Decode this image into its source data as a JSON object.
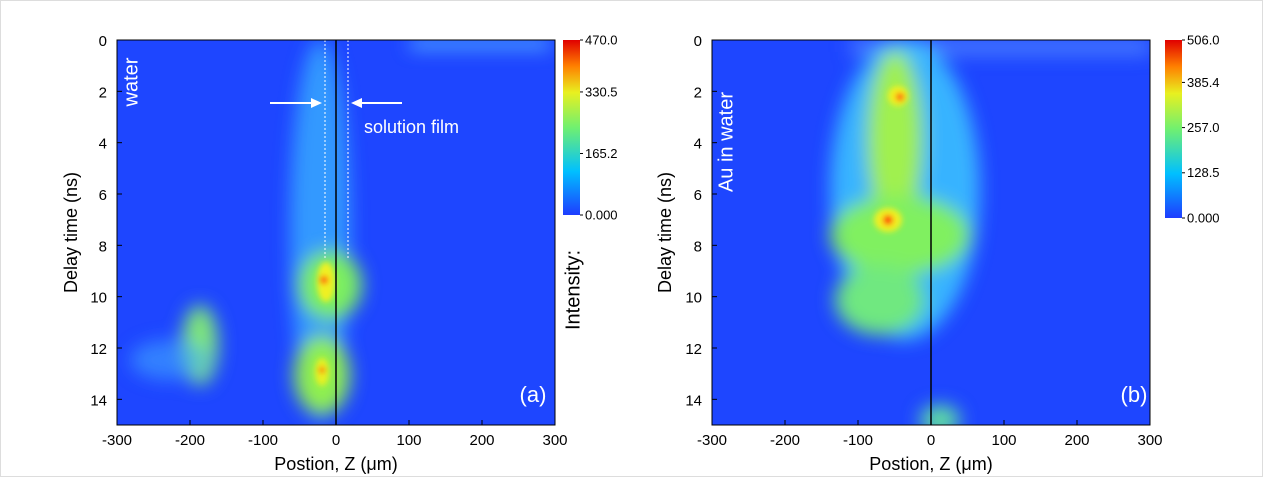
{
  "chart_data": [
    {
      "type": "heatmap",
      "xlabel": "Postion, Z (μm)",
      "ylabel": "Delay time (ns)",
      "xlim": [
        -300,
        300
      ],
      "xticks": [
        -300,
        -200,
        -100,
        0,
        100,
        200,
        300
      ],
      "ylim": [
        0,
        15
      ],
      "y_inverted": true,
      "yticks": [
        0,
        2,
        4,
        6,
        8,
        10,
        12,
        14
      ],
      "colorbar_label": "Intensity:",
      "colorbar_lim": [
        0,
        470
      ],
      "colorbar_ticks": [
        {
          "value": 470,
          "label": "470.0"
        },
        {
          "value": 330.5,
          "label": "330.5"
        },
        {
          "value": 165.2,
          "label": "165.2"
        },
        {
          "value": 0,
          "label": "0.000"
        }
      ],
      "colormap": "jet",
      "annotations": [
        "water",
        "solution film",
        "(a)"
      ]
    },
    {
      "type": "heatmap",
      "xlabel": "Postion, Z (μm)",
      "ylabel": "Delay time (ns)",
      "xlim": [
        -300,
        300
      ],
      "xticks": [
        -300,
        -200,
        -100,
        0,
        100,
        200,
        300
      ],
      "ylim": [
        0,
        15
      ],
      "y_inverted": true,
      "yticks": [
        0,
        2,
        4,
        6,
        8,
        10,
        12,
        14
      ],
      "colorbar_lim": [
        0,
        506
      ],
      "colorbar_ticks": [
        {
          "value": 506,
          "label": "506.0"
        },
        {
          "value": 385.4,
          "label": "385.4"
        },
        {
          "value": 257,
          "label": "257.0"
        },
        {
          "value": 128.5,
          "label": "128.5"
        },
        {
          "value": 0,
          "label": "0.000"
        }
      ],
      "colormap": "jet",
      "annotations": [
        "Au in water",
        "(b)"
      ]
    }
  ]
}
